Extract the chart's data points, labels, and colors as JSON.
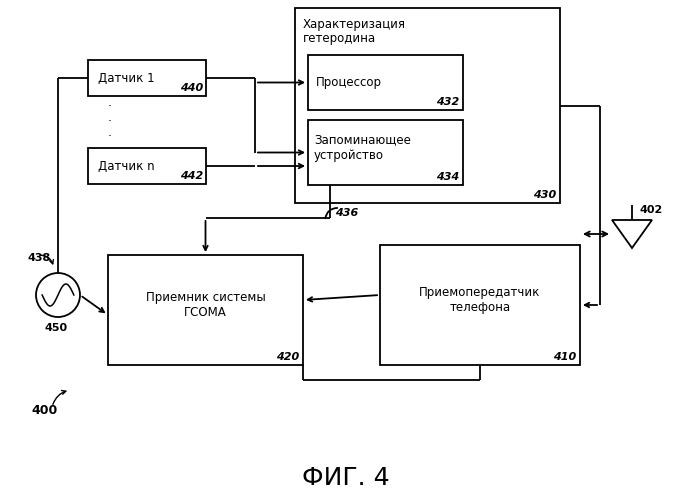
{
  "title": "ФИГ. 4",
  "label_400": "400",
  "label_402": "402",
  "label_410": "410",
  "label_420": "420",
  "label_430": "430",
  "label_432": "432",
  "label_434": "434",
  "label_436": "436",
  "label_438": "438",
  "label_440": "440",
  "label_442": "442",
  "label_450": "450",
  "box_sensor1_text": "Датчик 1",
  "box_sensorn_text": "Датчик n",
  "box_processor_text": "Процессор",
  "box_memory_text": "Запоминающее\nустройство",
  "box_characterization_line1": "Характеризация",
  "box_characterization_line2": "гетеродина",
  "box_receiver_text": "Приемник системы\nГСОМА",
  "box_transceiver_text": "Приемопередатчик\nтелефона",
  "bg_color": "#ffffff",
  "line_color": "#000000",
  "text_color": "#000000"
}
